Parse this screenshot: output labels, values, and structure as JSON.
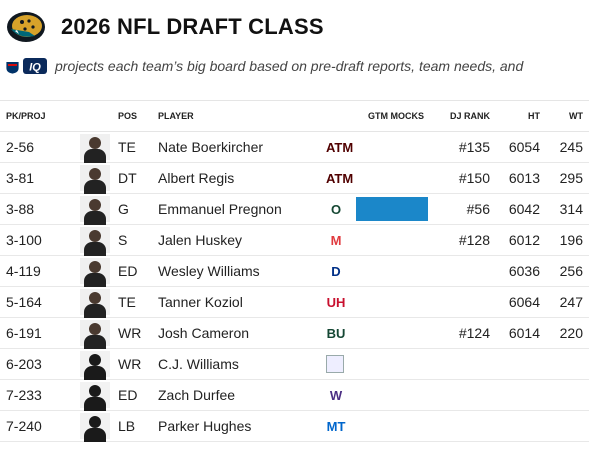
{
  "header": {
    "title": "2026 NFL DRAFT CLASS",
    "subtitle": "projects each team’s big board based on pre-draft reports, team needs, and",
    "iq_badge": "IQ",
    "colors": {
      "jaguars_teal": "#006778",
      "gtm_bar": "#1b87c9"
    }
  },
  "columns": {
    "pk": "PK/PROJ",
    "pos": "POS",
    "player": "PLAYER",
    "gtm": "GTM MOCKS",
    "rank": "DJ RANK",
    "ht": "HT",
    "wt": "WT"
  },
  "rows": [
    {
      "pk": "2-56",
      "pos": "TE",
      "name": "Nate Boerkircher",
      "logo": "ATM",
      "logo_color": "#500000",
      "gtm": false,
      "rank": "#135",
      "ht": "6054",
      "wt": "245"
    },
    {
      "pk": "3-81",
      "pos": "DT",
      "name": "Albert Regis",
      "logo": "ATM",
      "logo_color": "#500000",
      "gtm": false,
      "rank": "#150",
      "ht": "6013",
      "wt": "295"
    },
    {
      "pk": "3-88",
      "pos": "G",
      "name": "Emmanuel Pregnon",
      "logo": "O",
      "logo_color": "#154733",
      "gtm": true,
      "rank": "#56",
      "ht": "6042",
      "wt": "314"
    },
    {
      "pk": "3-100",
      "pos": "S",
      "name": "Jalen Huskey",
      "logo": "M",
      "logo_color": "#e03a3e",
      "gtm": false,
      "rank": "#128",
      "ht": "6012",
      "wt": "196"
    },
    {
      "pk": "4-119",
      "pos": "ED",
      "name": "Wesley Williams",
      "logo": "D",
      "logo_color": "#003087",
      "gtm": false,
      "rank": "",
      "ht": "6036",
      "wt": "256"
    },
    {
      "pk": "5-164",
      "pos": "TE",
      "name": "Tanner Koziol",
      "logo": "UH",
      "logo_color": "#c8102e",
      "gtm": false,
      "rank": "",
      "ht": "6064",
      "wt": "247"
    },
    {
      "pk": "6-191",
      "pos": "WR",
      "name": "Josh Cameron",
      "logo": "BU",
      "logo_color": "#154734",
      "gtm": false,
      "rank": "#124",
      "ht": "6014",
      "wt": "220"
    },
    {
      "pk": "6-203",
      "pos": "WR",
      "name": "C.J. Williams",
      "logo": "",
      "logo_color": "#999999",
      "gtm": false,
      "rank": "",
      "ht": "",
      "wt": ""
    },
    {
      "pk": "7-233",
      "pos": "ED",
      "name": "Zach Durfee",
      "logo": "W",
      "logo_color": "#4b2e83",
      "gtm": false,
      "rank": "",
      "ht": "",
      "wt": ""
    },
    {
      "pk": "7-240",
      "pos": "LB",
      "name": "Parker Hughes",
      "logo": "MT",
      "logo_color": "#0066cc",
      "gtm": false,
      "rank": "",
      "ht": "",
      "wt": ""
    }
  ]
}
